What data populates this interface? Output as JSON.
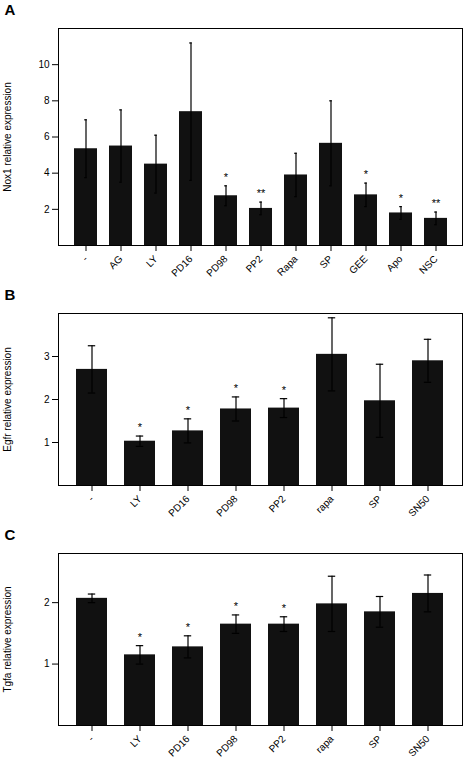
{
  "chart_data": [
    {
      "type": "bar",
      "title": "A",
      "categories": [
        "-",
        "AG",
        "LY",
        "PD16",
        "PD98",
        "PP2",
        "Rapa",
        "SP",
        "GEE",
        "Apo",
        "NSC"
      ],
      "values": [
        5.35,
        5.5,
        4.5,
        7.4,
        2.75,
        2.05,
        3.9,
        5.65,
        2.8,
        1.8,
        1.5
      ],
      "errors": [
        1.6,
        2.0,
        1.6,
        3.8,
        0.55,
        0.35,
        1.2,
        2.35,
        0.65,
        0.35,
        0.35
      ],
      "annotations": [
        {
          "category": "PD98",
          "text": "*"
        },
        {
          "category": "PP2",
          "text": "**"
        },
        {
          "category": "GEE",
          "text": "*"
        },
        {
          "category": "Apo",
          "text": "*"
        },
        {
          "category": "NSC",
          "text": "**"
        }
      ],
      "ylabel": "Nox1 relative expression",
      "ylim": [
        0,
        12
      ],
      "yticks": [
        2,
        4,
        6,
        8,
        10
      ],
      "color": "#111111",
      "grid": false
    },
    {
      "type": "bar",
      "title": "B",
      "categories": [
        "-",
        "LY",
        "PD16",
        "PD98",
        "PP2",
        "rapa",
        "SP",
        "SN50"
      ],
      "values": [
        2.7,
        1.03,
        1.27,
        1.78,
        1.8,
        3.05,
        1.97,
        2.9
      ],
      "errors": [
        0.55,
        0.12,
        0.28,
        0.28,
        0.22,
        0.85,
        0.85,
        0.5
      ],
      "annotations": [
        {
          "category": "LY",
          "text": "*"
        },
        {
          "category": "PD16",
          "text": "*"
        },
        {
          "category": "PD98",
          "text": "*"
        },
        {
          "category": "PP2",
          "text": "*"
        }
      ],
      "ylabel": "Egfr relative expression",
      "ylim": [
        0,
        4
      ],
      "yticks": [
        1,
        2,
        3
      ],
      "color": "#111111",
      "grid": false
    },
    {
      "type": "bar",
      "title": "C",
      "categories": [
        "-",
        "LY",
        "PD16",
        "PD98",
        "PP2",
        "rapa",
        "SP",
        "SN50"
      ],
      "values": [
        2.07,
        1.15,
        1.28,
        1.65,
        1.65,
        1.98,
        1.85,
        2.15
      ],
      "errors": [
        0.07,
        0.15,
        0.18,
        0.15,
        0.12,
        0.45,
        0.25,
        0.3
      ],
      "annotations": [
        {
          "category": "LY",
          "text": "*"
        },
        {
          "category": "PD16",
          "text": "*"
        },
        {
          "category": "PD98",
          "text": "*"
        },
        {
          "category": "PP2",
          "text": "*"
        }
      ],
      "ylabel": "Tgfa relative expression",
      "ylim": [
        0,
        2.8
      ],
      "yticks": [
        1,
        2
      ],
      "color": "#111111",
      "grid": false
    }
  ]
}
